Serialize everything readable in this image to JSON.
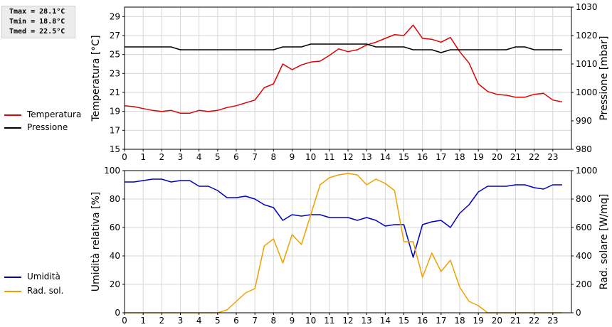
{
  "stats": {
    "tmax": "Tmax = 28.1°C",
    "tmin": "Tmin = 18.8°C",
    "tmed": "Tmed = 22.5°C"
  },
  "legend_top": [
    {
      "label": "Temperatura",
      "color": "#e00000"
    },
    {
      "label": "Pressione",
      "color": "#000000"
    }
  ],
  "legend_bottom": [
    {
      "label": "Umidità",
      "color": "#0000c0"
    },
    {
      "label": "Rad. sol.",
      "color": "#f0a000"
    }
  ],
  "chart_data": [
    {
      "type": "line",
      "grid": true,
      "x_ticks": [
        0,
        1,
        2,
        3,
        4,
        5,
        6,
        7,
        8,
        9,
        10,
        11,
        12,
        13,
        14,
        15,
        16,
        17,
        18,
        19,
        20,
        21,
        22,
        23
      ],
      "xlim": [
        0,
        24
      ],
      "ylabel": "Temperatura [°C]",
      "ylim": [
        15,
        30
      ],
      "y_ticks": [
        15,
        17,
        19,
        21,
        23,
        25,
        27,
        29
      ],
      "ylabel_right": "Pressione [mbar]",
      "ylim_right": [
        980,
        1030
      ],
      "y_ticks_right": [
        980,
        990,
        1000,
        1010,
        1020,
        1030
      ],
      "series": [
        {
          "name": "Temperatura",
          "axis": "left",
          "color": "#e00000",
          "x": [
            0,
            0.5,
            1,
            1.5,
            2,
            2.5,
            3,
            3.5,
            4,
            4.5,
            5,
            5.5,
            6,
            6.5,
            7,
            7.5,
            8,
            8.5,
            9,
            9.5,
            10,
            10.5,
            11,
            11.5,
            12,
            12.5,
            13,
            13.5,
            14,
            14.5,
            15,
            15.5,
            16,
            16.5,
            17,
            17.5,
            18,
            18.5,
            19,
            19.5,
            20,
            20.5,
            21,
            21.5,
            22,
            22.5,
            23,
            23.5
          ],
          "values": [
            19.6,
            19.5,
            19.3,
            19.1,
            19.0,
            19.1,
            18.8,
            18.8,
            19.1,
            19.0,
            19.1,
            19.4,
            19.6,
            19.9,
            20.2,
            21.5,
            21.9,
            24.0,
            23.4,
            23.9,
            24.2,
            24.3,
            24.9,
            25.6,
            25.3,
            25.5,
            26.0,
            26.3,
            26.7,
            27.1,
            27.0,
            28.1,
            26.7,
            26.6,
            26.3,
            26.8,
            25.3,
            24.1,
            21.9,
            21.1,
            20.8,
            20.7,
            20.5,
            20.5,
            20.8,
            20.9,
            20.2,
            20.0
          ]
        },
        {
          "name": "Pressione",
          "axis": "right",
          "color": "#000000",
          "x": [
            0,
            0.5,
            1,
            1.5,
            2,
            2.5,
            3,
            3.5,
            4,
            4.5,
            5,
            5.5,
            6,
            6.5,
            7,
            7.5,
            8,
            8.5,
            9,
            9.5,
            10,
            10.5,
            11,
            11.5,
            12,
            12.5,
            13,
            13.5,
            14,
            14.5,
            15,
            15.5,
            16,
            16.5,
            17,
            17.5,
            18,
            18.5,
            19,
            19.5,
            20,
            20.5,
            21,
            21.5,
            22,
            22.5,
            23,
            23.5
          ],
          "values": [
            1016,
            1016,
            1016,
            1016,
            1016,
            1016,
            1015,
            1015,
            1015,
            1015,
            1015,
            1015,
            1015,
            1015,
            1015,
            1015,
            1015,
            1016,
            1016,
            1016,
            1017,
            1017,
            1017,
            1017,
            1017,
            1017,
            1017,
            1016,
            1016,
            1016,
            1016,
            1015,
            1015,
            1015,
            1014,
            1015,
            1015,
            1015,
            1015,
            1015,
            1015,
            1015,
            1016,
            1016,
            1015,
            1015,
            1015,
            1015
          ]
        }
      ]
    },
    {
      "type": "line",
      "grid": true,
      "x_ticks": [
        0,
        1,
        2,
        3,
        4,
        5,
        6,
        7,
        8,
        9,
        10,
        11,
        12,
        13,
        14,
        15,
        16,
        17,
        18,
        19,
        20,
        21,
        22,
        23
      ],
      "xlim": [
        0,
        24
      ],
      "ylabel": "Umidità relativa [%]",
      "ylim": [
        0,
        100
      ],
      "y_ticks": [
        0,
        20,
        40,
        60,
        80,
        100
      ],
      "ylabel_right": "Rad. solare [W/mq]",
      "ylim_right": [
        0,
        1000
      ],
      "y_ticks_right": [
        0,
        200,
        400,
        600,
        800,
        1000
      ],
      "series": [
        {
          "name": "Umidità",
          "axis": "left",
          "color": "#0000c0",
          "x": [
            0,
            0.5,
            1,
            1.5,
            2,
            2.5,
            3,
            3.5,
            4,
            4.5,
            5,
            5.5,
            6,
            6.5,
            7,
            7.5,
            8,
            8.5,
            9,
            9.5,
            10,
            10.5,
            11,
            11.5,
            12,
            12.5,
            13,
            13.5,
            14,
            14.5,
            15,
            15.5,
            16,
            16.5,
            17,
            17.5,
            18,
            18.5,
            19,
            19.5,
            20,
            20.5,
            21,
            21.5,
            22,
            22.5,
            23,
            23.5
          ],
          "values": [
            92,
            92,
            93,
            94,
            94,
            92,
            93,
            93,
            89,
            89,
            86,
            81,
            81,
            82,
            80,
            76,
            74,
            65,
            69,
            68,
            69,
            69,
            67,
            67,
            67,
            65,
            67,
            65,
            61,
            62,
            62,
            39,
            62,
            64,
            65,
            60,
            70,
            76,
            85,
            89,
            89,
            89,
            90,
            90,
            88,
            87,
            90,
            90
          ]
        },
        {
          "name": "Rad. sol.",
          "axis": "right",
          "color": "#f0a000",
          "x": [
            0,
            0.5,
            1,
            1.5,
            2,
            2.5,
            3,
            3.5,
            4,
            4.5,
            5,
            5.5,
            6,
            6.5,
            7,
            7.5,
            8,
            8.5,
            9,
            9.5,
            10,
            10.5,
            11,
            11.5,
            12,
            12.5,
            13,
            13.5,
            14,
            14.5,
            15,
            15.5,
            16,
            16.5,
            17,
            17.5,
            18,
            18.5,
            19,
            19.5,
            20,
            20.5,
            21,
            21.5,
            22,
            22.5,
            23,
            23.5
          ],
          "values": [
            0,
            0,
            0,
            0,
            0,
            0,
            0,
            0,
            0,
            0,
            0,
            20,
            80,
            140,
            170,
            470,
            520,
            350,
            550,
            480,
            690,
            900,
            950,
            970,
            980,
            970,
            900,
            940,
            910,
            860,
            500,
            500,
            250,
            420,
            290,
            370,
            180,
            80,
            50,
            0,
            0,
            0,
            0,
            0,
            0,
            0,
            0,
            0
          ]
        }
      ]
    }
  ]
}
